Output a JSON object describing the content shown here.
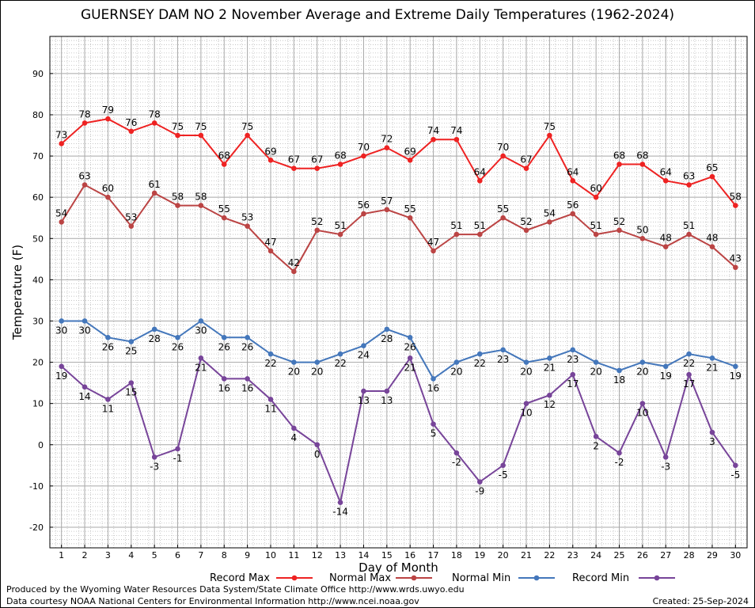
{
  "title": "GUERNSEY DAM NO 2 November Average and Extreme Daily Temperatures (1962-2024)",
  "footer": {
    "line1": "Produced by the Wyoming Water Resources Data System/State Climate Office http://www.wrds.uwyo.edu",
    "line2": "Data courtesy NOAA National Centers for Environmental Information http://www.ncei.noaa.gov",
    "created": "Created:  25-Sep-2024"
  },
  "chart_data": {
    "type": "line",
    "title": "GUERNSEY DAM NO 2 November Average and Extreme Daily Temperatures (1962-2024)",
    "xlabel": "Day of Month",
    "ylabel": "Temperature (F)",
    "x": [
      1,
      2,
      3,
      4,
      5,
      6,
      7,
      8,
      9,
      10,
      11,
      12,
      13,
      14,
      15,
      16,
      17,
      18,
      19,
      20,
      21,
      22,
      23,
      24,
      25,
      26,
      27,
      28,
      29,
      30
    ],
    "xlim": [
      0.5,
      30.5
    ],
    "ylim": [
      -25,
      99
    ],
    "yticks": [
      -20,
      -10,
      0,
      10,
      20,
      30,
      40,
      50,
      60,
      70,
      80,
      90
    ],
    "grid": true,
    "legend_position": "bottom",
    "series": [
      {
        "name": "Record Max",
        "color": "#ee2222",
        "label_position": "above",
        "values": [
          73,
          78,
          79,
          76,
          78,
          75,
          75,
          68,
          75,
          69,
          67,
          67,
          68,
          70,
          72,
          69,
          74,
          74,
          64,
          70,
          67,
          75,
          64,
          60,
          68,
          68,
          64,
          63,
          65,
          58
        ]
      },
      {
        "name": "Normal Max",
        "color": "#bb4444",
        "label_position": "above",
        "values": [
          54,
          63,
          60,
          53,
          61,
          58,
          58,
          55,
          53,
          47,
          42,
          52,
          51,
          56,
          57,
          55,
          47,
          51,
          51,
          55,
          52,
          54,
          56,
          51,
          52,
          50,
          48,
          51,
          48,
          43
        ]
      },
      {
        "name": "Normal Min",
        "color": "#4477bb",
        "label_position": "below",
        "values": [
          30,
          30,
          26,
          25,
          28,
          26,
          30,
          26,
          26,
          22,
          20,
          20,
          22,
          24,
          28,
          26,
          16,
          20,
          22,
          23,
          20,
          21,
          23,
          20,
          18,
          20,
          19,
          22,
          21,
          19
        ]
      },
      {
        "name": "Record Min",
        "color": "#774499",
        "label_position": "below",
        "values": [
          19,
          14,
          11,
          15,
          -3,
          -1,
          21,
          16,
          16,
          11,
          4,
          0,
          -14,
          13,
          13,
          21,
          5,
          -2,
          -9,
          -5,
          10,
          12,
          17,
          2,
          -2,
          10,
          -3,
          17,
          3,
          -5
        ]
      }
    ]
  }
}
